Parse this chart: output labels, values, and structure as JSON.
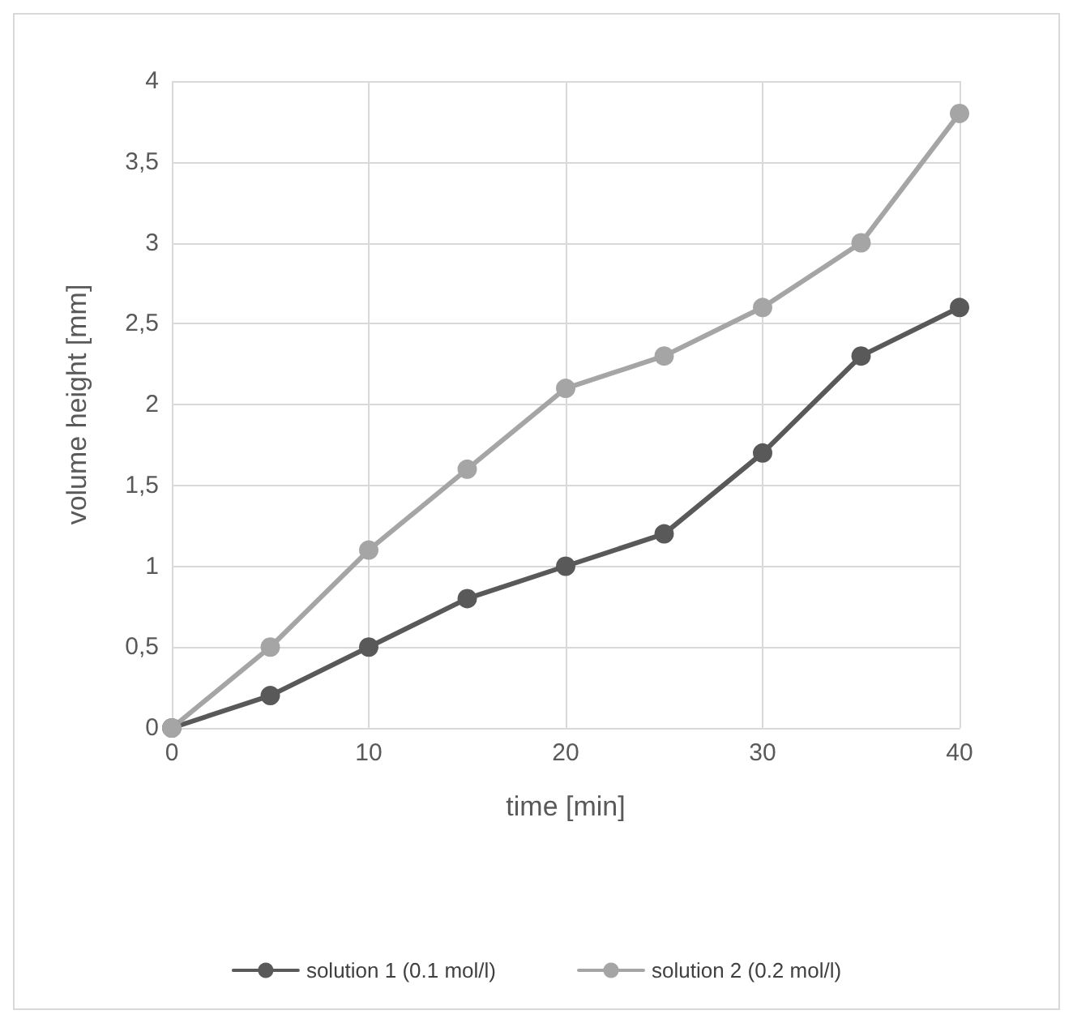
{
  "chart_data": {
    "type": "line",
    "xlabel": "time [min]",
    "ylabel": "volume height [mm]",
    "x": [
      0,
      5,
      10,
      15,
      20,
      25,
      30,
      35,
      40
    ],
    "series": [
      {
        "name": "solution 1 (0.1 mol/l)",
        "color": "#595959",
        "values": [
          0,
          0.2,
          0.5,
          0.8,
          1.0,
          1.2,
          1.7,
          2.3,
          2.6
        ]
      },
      {
        "name": "solution 2 (0.2 mol/l)",
        "color": "#a5a5a5",
        "values": [
          0,
          0.5,
          1.1,
          1.6,
          2.1,
          2.3,
          2.6,
          3.0,
          3.8
        ]
      }
    ],
    "xlim": [
      0,
      40
    ],
    "xticks": [
      0,
      10,
      20,
      30,
      40
    ],
    "ylim": [
      0,
      4
    ],
    "yticks": [
      0,
      {
        "value": 0.5,
        "label": "0,5"
      },
      1,
      {
        "value": 1.5,
        "label": "1,5"
      },
      2,
      {
        "value": 2.5,
        "label": "2,5"
      },
      3,
      {
        "value": 3.5,
        "label": "3,5"
      },
      4
    ],
    "grid": true,
    "legend": "bottom",
    "marker": "circle",
    "line_style": "solid"
  }
}
